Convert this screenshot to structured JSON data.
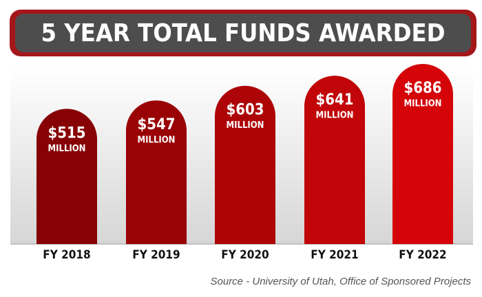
{
  "chart_data": {
    "type": "bar",
    "title": "5 YEAR TOTAL FUNDS AWARDED",
    "categories": [
      "FY 2018",
      "FY 2019",
      "FY 2020",
      "FY 2021",
      "FY 2022"
    ],
    "values": [
      515,
      547,
      603,
      641,
      686
    ],
    "value_labels": [
      "$515",
      "$547",
      "$603",
      "$641",
      "$686"
    ],
    "value_unit": "MILLION",
    "colors": [
      "#870204",
      "#9a0306",
      "#ad0507",
      "#c10508",
      "#d40409"
    ],
    "source": "Source - University of Utah, Office of Sponsored Projects"
  }
}
